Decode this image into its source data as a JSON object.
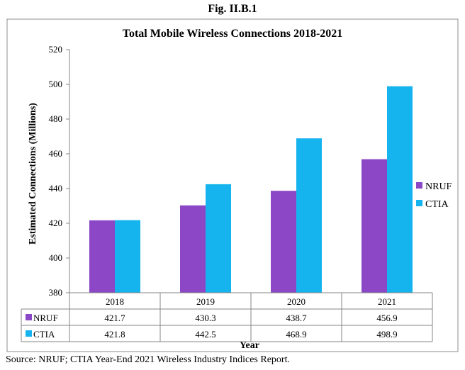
{
  "figure_label": "Fig. II.B.1",
  "source_note": "Source:  NRUF; CTIA Year-End 2021 Wireless Industry Indices Report.",
  "chart_data": {
    "type": "bar",
    "title": "Total Mobile Wireless  Connections 2018-2021",
    "xlabel": "Year",
    "ylabel": "Estimated Connections (Millions)",
    "categories": [
      "2018",
      "2019",
      "2020",
      "2021"
    ],
    "ylim": [
      380,
      520
    ],
    "yticks": [
      "380",
      "400",
      "420",
      "440",
      "460",
      "480",
      "500",
      "520"
    ],
    "grid": false,
    "legend": "right",
    "data_table": true,
    "series": [
      {
        "name": "NRUF",
        "color": "#8b47c6",
        "values": [
          421.7,
          430.3,
          438.7,
          456.9
        ],
        "labels": [
          "421.7",
          "430.3",
          "438.7",
          "456.9"
        ]
      },
      {
        "name": "CTIA",
        "color": "#16b4ee",
        "values": [
          421.8,
          442.5,
          468.9,
          498.9
        ],
        "labels": [
          "421.8",
          "442.5",
          "468.9",
          "498.9"
        ]
      }
    ]
  }
}
